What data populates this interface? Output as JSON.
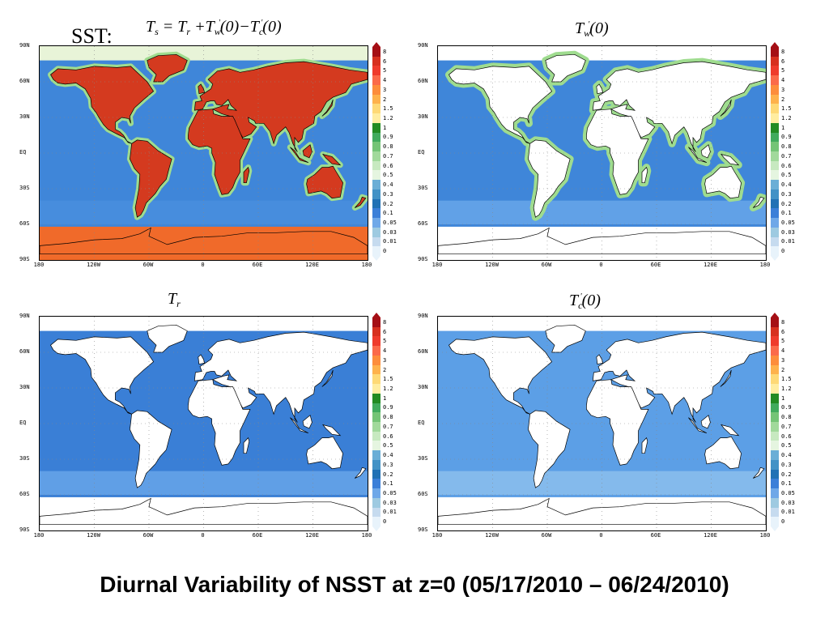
{
  "slide": {
    "title": "Diurnal Variability of NSST at z=0 (05/17/2010 – 06/24/2010)",
    "sst_label": "SST:"
  },
  "axes": {
    "lat_ticks": [
      "90N",
      "60N",
      "30N",
      "EQ",
      "30S",
      "60S",
      "90S"
    ],
    "lon_ticks": [
      "180",
      "120W",
      "60W",
      "0",
      "60E",
      "120E",
      "180"
    ]
  },
  "colorbar": {
    "labels": [
      "8",
      "6",
      "5",
      "4",
      "3",
      "2",
      "1.5",
      "1.2",
      "1",
      "0.9",
      "0.8",
      "0.7",
      "0.6",
      "0.5",
      "0.4",
      "0.3",
      "0.2",
      "0.1",
      "0.05",
      "0.03",
      "0.01",
      "0"
    ],
    "colors": [
      "#a50f15",
      "#d7301f",
      "#ef3b2c",
      "#fb6a4a",
      "#fd8d3c",
      "#feb24c",
      "#fed976",
      "#ffeda0",
      "#238b22",
      "#41ab5d",
      "#74c476",
      "#a1d99b",
      "#c7e9c0",
      "#e5f5e0",
      "#6baed6",
      "#4292c6",
      "#2171b5",
      "#3b7fd8",
      "#6fa8e8",
      "#9ecae1",
      "#c6dbef",
      "#e8f3fb"
    ]
  },
  "panels": [
    {
      "id": "ts",
      "formula": {
        "lhs": "T",
        "lhs_sub": "s",
        "eq": " = ",
        "a": "T",
        "a_sub": "r",
        "p": " +",
        "b": "T",
        "b_sub": "w",
        "b_sup": "'",
        "b_arg": "(0)",
        "m": "−",
        "c": "T",
        "c_sub": "c",
        "c_sup": "'",
        "c_arg": "(0)"
      },
      "ocean_color": "#3f86d9",
      "land_color": "#d43a1f",
      "polar_color": "#f06a2a",
      "arctic_color": "#e8f4d8"
    },
    {
      "id": "tw",
      "title": {
        "sym": "T",
        "sub": "w",
        "sup": "'",
        "arg": "(0)"
      },
      "ocean_color": "#3f86d9",
      "land_color": "#ffffff",
      "polar_color": "#ffffff",
      "arctic_color": "#ffffff"
    },
    {
      "id": "tr",
      "title": {
        "sym": "T",
        "sub": "r"
      },
      "ocean_color": "#3a7fd6",
      "land_color": "#ffffff",
      "polar_color": "#ffffff",
      "arctic_color": "#ffffff"
    },
    {
      "id": "tc",
      "title": {
        "sym": "T",
        "sub": "c",
        "sup": "'",
        "arg": "(0)"
      },
      "ocean_color": "#5c9fe6",
      "land_color": "#ffffff",
      "polar_color": "#ffffff",
      "arctic_color": "#ffffff"
    }
  ]
}
